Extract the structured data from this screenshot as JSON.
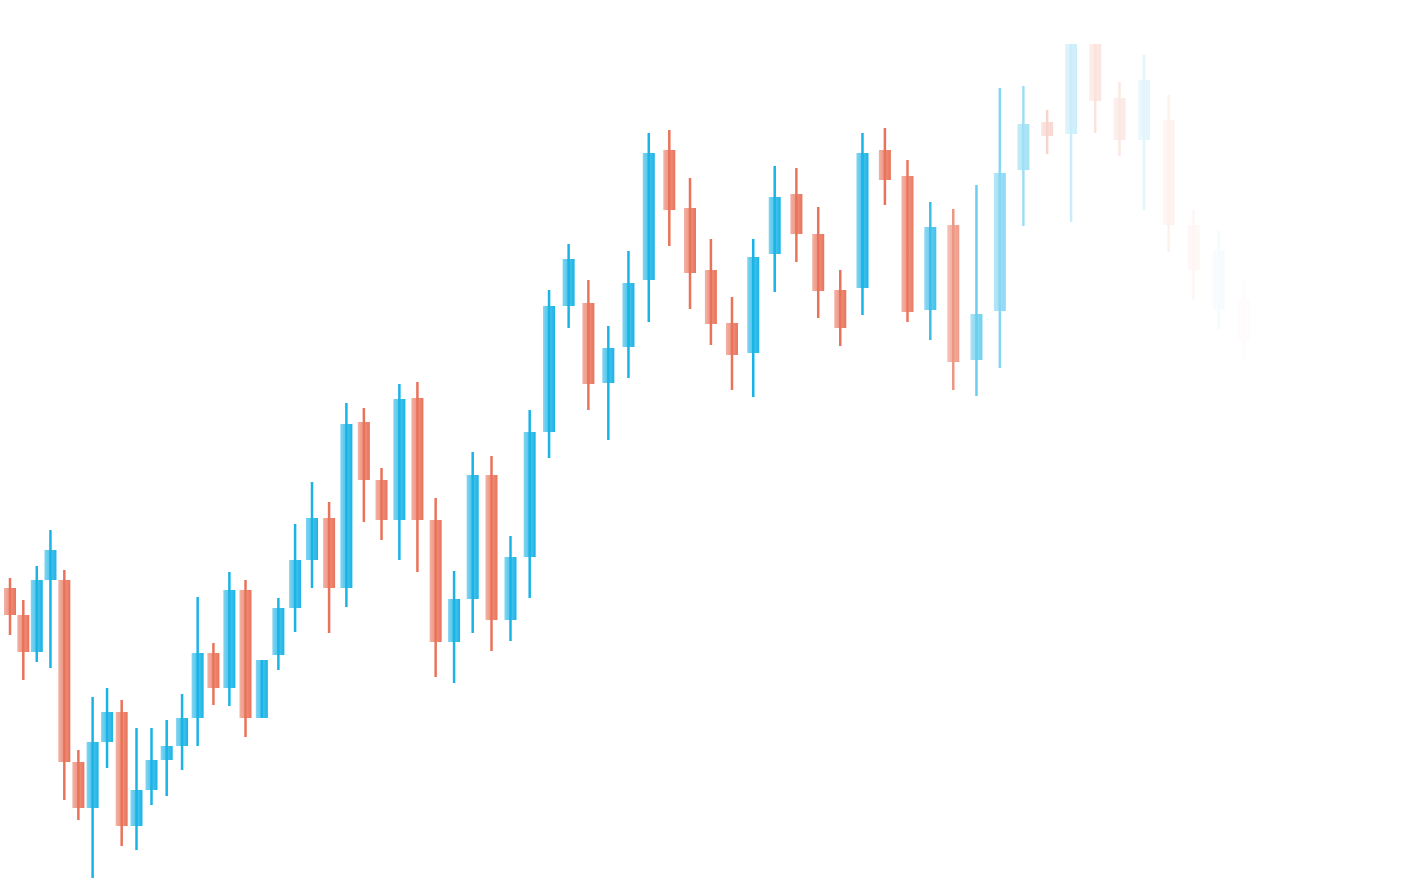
{
  "chart_data": {
    "type": "candlestick",
    "up_color": "#1ab3e6",
    "down_color": "#e9735a",
    "ylim": [
      0,
      888
    ],
    "open": [
      300,
      273,
      236,
      308,
      308,
      126,
      80,
      146,
      176,
      62,
      98,
      128,
      142,
      170,
      235,
      200,
      298,
      170,
      233,
      280,
      328,
      370,
      300,
      466,
      408,
      368,
      490,
      368,
      246,
      289,
      413,
      268,
      331,
      456,
      582,
      585,
      505,
      541,
      608,
      738,
      680,
      618,
      565,
      535,
      634,
      694,
      654,
      598,
      600,
      738,
      712,
      578,
      663,
      528,
      577,
      718,
      766,
      754,
      844,
      790,
      748,
      768,
      663,
      578,
      588
    ],
    "high": [
      310,
      288,
      322,
      358,
      318,
      138,
      191,
      200,
      188,
      160,
      160,
      168,
      194,
      291,
      245,
      316,
      308,
      228,
      290,
      364,
      406,
      386,
      485,
      480,
      420,
      504,
      506,
      390,
      317,
      436,
      432,
      352,
      478,
      598,
      644,
      608,
      562,
      637,
      755,
      758,
      710,
      649,
      591,
      649,
      722,
      720,
      681,
      618,
      755,
      760,
      728,
      686,
      679,
      703,
      800,
      802,
      778,
      844,
      844,
      806,
      833,
      793,
      678,
      658,
      608
    ],
    "low": [
      253,
      208,
      226,
      220,
      88,
      68,
      10,
      120,
      42,
      38,
      83,
      92,
      118,
      142,
      183,
      182,
      151,
      170,
      218,
      256,
      300,
      255,
      281,
      366,
      348,
      328,
      316,
      211,
      205,
      255,
      237,
      247,
      290,
      430,
      560,
      478,
      448,
      510,
      566,
      642,
      579,
      543,
      498,
      491,
      596,
      626,
      570,
      542,
      573,
      683,
      566,
      548,
      498,
      492,
      520,
      662,
      734,
      666,
      755,
      732,
      678,
      636,
      588,
      558,
      528
    ],
    "close": [
      273,
      236,
      308,
      338,
      126,
      80,
      146,
      176,
      62,
      98,
      128,
      142,
      170,
      235,
      200,
      298,
      170,
      228,
      280,
      328,
      370,
      300,
      464,
      408,
      368,
      489,
      368,
      246,
      289,
      413,
      268,
      331,
      456,
      582,
      629,
      504,
      540,
      605,
      735,
      678,
      615,
      564,
      533,
      631,
      691,
      654,
      597,
      560,
      735,
      708,
      576,
      661,
      526,
      574,
      715,
      764,
      752,
      844,
      787,
      748,
      808,
      663,
      618,
      638,
      548
    ]
  }
}
